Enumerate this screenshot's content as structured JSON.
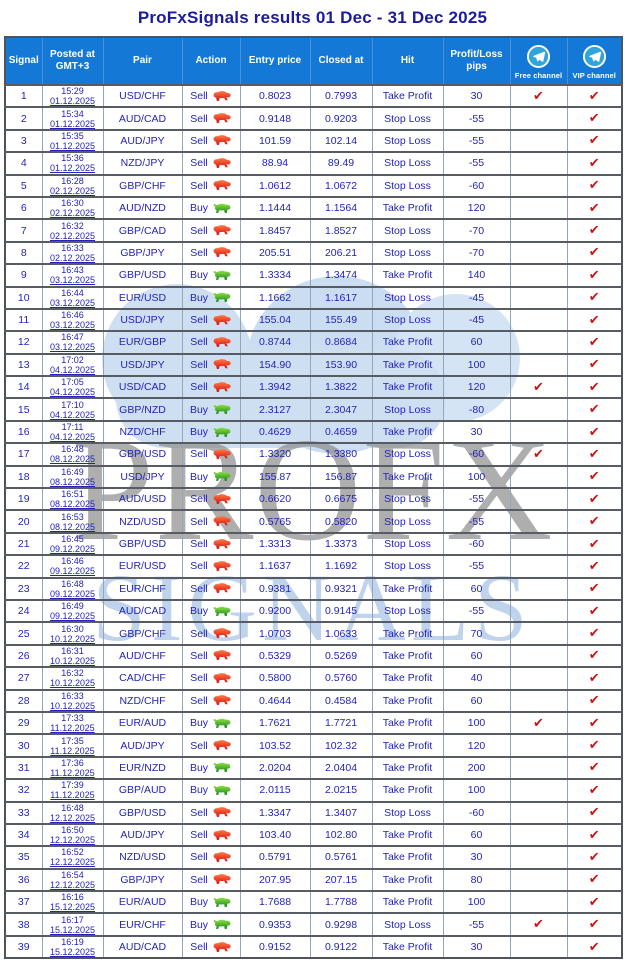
{
  "title": "ProFxSignals results 01 Dec - 31 Dec 2025",
  "colors": {
    "header_bg": "#1478d6",
    "title_text": "#1b1b9e",
    "cell_text": "#2323bb",
    "check_red": "#cc1414",
    "sell_bear_red": "#d90f0f",
    "buy_bull_green": "#1f9e1f",
    "telegram_blue": "#31a4de",
    "watermark_gray": "#8d8d8d",
    "watermark_light_blue": "#cbddf1"
  },
  "check_glyph": "✔",
  "watermark": {
    "line1": "PROFX",
    "line2": "SIGNALS"
  },
  "table": {
    "columns": [
      "Signal",
      "Posted at GMT+3",
      "Pair",
      "Action",
      "Entry price",
      "Closed at",
      "Hit",
      "Profit/Loss pips",
      "Free channel",
      "VIP channel"
    ]
  },
  "rows": [
    {
      "n": "1",
      "time": "15:29",
      "date": "01.12.2025",
      "pair": "USD/CHF",
      "act": "Sell",
      "entry": "0.8023",
      "closed": "0.7993",
      "hit": "Take Profit",
      "pips": "30",
      "free": true,
      "vip": true
    },
    {
      "n": "2",
      "time": "15:34",
      "date": "01.12.2025",
      "pair": "AUD/CAD",
      "act": "Sell",
      "entry": "0.9148",
      "closed": "0.9203",
      "hit": "Stop Loss",
      "pips": "-55",
      "free": false,
      "vip": true
    },
    {
      "n": "3",
      "time": "15:35",
      "date": "01.12.2025",
      "pair": "AUD/JPY",
      "act": "Sell",
      "entry": "101.59",
      "closed": "102.14",
      "hit": "Stop Loss",
      "pips": "-55",
      "free": false,
      "vip": true
    },
    {
      "n": "4",
      "time": "15:36",
      "date": "01.12.2025",
      "pair": "NZD/JPY",
      "act": "Sell",
      "entry": "88.94",
      "closed": "89.49",
      "hit": "Stop Loss",
      "pips": "-55",
      "free": false,
      "vip": true
    },
    {
      "n": "5",
      "time": "16:28",
      "date": "02.12.2025",
      "pair": "GBP/CHF",
      "act": "Sell",
      "entry": "1.0612",
      "closed": "1.0672",
      "hit": "Stop Loss",
      "pips": "-60",
      "free": false,
      "vip": true
    },
    {
      "n": "6",
      "time": "16:30",
      "date": "02.12.2025",
      "pair": "AUD/NZD",
      "act": "Buy",
      "entry": "1.1444",
      "closed": "1.1564",
      "hit": "Take Profit",
      "pips": "120",
      "free": false,
      "vip": true
    },
    {
      "n": "7",
      "time": "16:32",
      "date": "02.12.2025",
      "pair": "GBP/CAD",
      "act": "Sell",
      "entry": "1.8457",
      "closed": "1.8527",
      "hit": "Stop Loss",
      "pips": "-70",
      "free": false,
      "vip": true
    },
    {
      "n": "8",
      "time": "16:33",
      "date": "02.12.2025",
      "pair": "GBP/JPY",
      "act": "Sell",
      "entry": "205.51",
      "closed": "206.21",
      "hit": "Stop Loss",
      "pips": "-70",
      "free": false,
      "vip": true
    },
    {
      "n": "9",
      "time": "16:43",
      "date": "03.12.2025",
      "pair": "GBP/USD",
      "act": "Buy",
      "entry": "1.3334",
      "closed": "1.3474",
      "hit": "Take Profit",
      "pips": "140",
      "free": false,
      "vip": true
    },
    {
      "n": "10",
      "time": "16:44",
      "date": "03.12.2025",
      "pair": "EUR/USD",
      "act": "Buy",
      "entry": "1.1662",
      "closed": "1.1617",
      "hit": "Stop Loss",
      "pips": "-45",
      "free": false,
      "vip": true
    },
    {
      "n": "11",
      "time": "16:46",
      "date": "03.12.2025",
      "pair": "USD/JPY",
      "act": "Sell",
      "entry": "155.04",
      "closed": "155.49",
      "hit": "Stop Loss",
      "pips": "-45",
      "free": false,
      "vip": true
    },
    {
      "n": "12",
      "time": "16:47",
      "date": "03.12.2025",
      "pair": "EUR/GBP",
      "act": "Sell",
      "entry": "0.8744",
      "closed": "0.8684",
      "hit": "Take Profit",
      "pips": "60",
      "free": false,
      "vip": true
    },
    {
      "n": "13",
      "time": "17:02",
      "date": "04.12.2025",
      "pair": "USD/JPY",
      "act": "Sell",
      "entry": "154.90",
      "closed": "153.90",
      "hit": "Take Profit",
      "pips": "100",
      "free": false,
      "vip": true
    },
    {
      "n": "14",
      "time": "17:05",
      "date": "04.12.2025",
      "pair": "USD/CAD",
      "act": "Sell",
      "entry": "1.3942",
      "closed": "1.3822",
      "hit": "Take Profit",
      "pips": "120",
      "free": true,
      "vip": true
    },
    {
      "n": "15",
      "time": "17:10",
      "date": "04.12.2025",
      "pair": "GBP/NZD",
      "act": "Buy",
      "entry": "2.3127",
      "closed": "2.3047",
      "hit": "Stop Loss",
      "pips": "-80",
      "free": false,
      "vip": true
    },
    {
      "n": "16",
      "time": "17:11",
      "date": "04.12.2025",
      "pair": "NZD/CHF",
      "act": "Buy",
      "entry": "0.4629",
      "closed": "0.4659",
      "hit": "Take Profit",
      "pips": "30",
      "free": false,
      "vip": true
    },
    {
      "n": "17",
      "time": "16:48",
      "date": "08.12.2025",
      "pair": "GBP/USD",
      "act": "Sell",
      "entry": "1.3320",
      "closed": "1.3380",
      "hit": "Stop Loss",
      "pips": "-60",
      "free": true,
      "vip": true
    },
    {
      "n": "18",
      "time": "16:49",
      "date": "08.12.2025",
      "pair": "USD/JPY",
      "act": "Buy",
      "entry": "155.87",
      "closed": "156.87",
      "hit": "Take Profit",
      "pips": "100",
      "free": false,
      "vip": true
    },
    {
      "n": "19",
      "time": "16:51",
      "date": "08.12.2025",
      "pair": "AUD/USD",
      "act": "Sell",
      "entry": "0.6620",
      "closed": "0.6675",
      "hit": "Stop Loss",
      "pips": "-55",
      "free": false,
      "vip": true
    },
    {
      "n": "20",
      "time": "16:53",
      "date": "08.12.2025",
      "pair": "NZD/USD",
      "act": "Sell",
      "entry": "0.5765",
      "closed": "0.5820",
      "hit": "Stop Loss",
      "pips": "-55",
      "free": false,
      "vip": true
    },
    {
      "n": "21",
      "time": "16:45",
      "date": "09.12.2025",
      "pair": "GBP/USD",
      "act": "Sell",
      "entry": "1.3313",
      "closed": "1.3373",
      "hit": "Stop Loss",
      "pips": "-60",
      "free": false,
      "vip": true
    },
    {
      "n": "22",
      "time": "16:46",
      "date": "09.12.2025",
      "pair": "EUR/USD",
      "act": "Sell",
      "entry": "1.1637",
      "closed": "1.1692",
      "hit": "Stop Loss",
      "pips": "-55",
      "free": false,
      "vip": true
    },
    {
      "n": "23",
      "time": "16:48",
      "date": "09.12.2025",
      "pair": "EUR/CHF",
      "act": "Sell",
      "entry": "0.9381",
      "closed": "0.9321",
      "hit": "Take Profit",
      "pips": "60",
      "free": false,
      "vip": true
    },
    {
      "n": "24",
      "time": "16:49",
      "date": "09.12.2025",
      "pair": "AUD/CAD",
      "act": "Buy",
      "entry": "0.9200",
      "closed": "0.9145",
      "hit": "Stop Loss",
      "pips": "-55",
      "free": false,
      "vip": true
    },
    {
      "n": "25",
      "time": "16:30",
      "date": "10.12.2025",
      "pair": "GBP/CHF",
      "act": "Sell",
      "entry": "1.0703",
      "closed": "1.0633",
      "hit": "Take Profit",
      "pips": "70",
      "free": false,
      "vip": true
    },
    {
      "n": "26",
      "time": "16:31",
      "date": "10.12.2025",
      "pair": "AUD/CHF",
      "act": "Sell",
      "entry": "0.5329",
      "closed": "0.5269",
      "hit": "Take Profit",
      "pips": "60",
      "free": false,
      "vip": true
    },
    {
      "n": "27",
      "time": "16:32",
      "date": "10.12.2025",
      "pair": "CAD/CHF",
      "act": "Sell",
      "entry": "0.5800",
      "closed": "0.5760",
      "hit": "Take Profit",
      "pips": "40",
      "free": false,
      "vip": true
    },
    {
      "n": "28",
      "time": "16:33",
      "date": "10.12.2025",
      "pair": "NZD/CHF",
      "act": "Sell",
      "entry": "0.4644",
      "closed": "0.4584",
      "hit": "Take Profit",
      "pips": "60",
      "free": false,
      "vip": true
    },
    {
      "n": "29",
      "time": "17:33",
      "date": "11.12.2025",
      "pair": "EUR/AUD",
      "act": "Buy",
      "entry": "1.7621",
      "closed": "1.7721",
      "hit": "Take Profit",
      "pips": "100",
      "free": true,
      "vip": true
    },
    {
      "n": "30",
      "time": "17:35",
      "date": "11.12.2025",
      "pair": "AUD/JPY",
      "act": "Sell",
      "entry": "103.52",
      "closed": "102.32",
      "hit": "Take Profit",
      "pips": "120",
      "free": false,
      "vip": true
    },
    {
      "n": "31",
      "time": "17:36",
      "date": "11.12.2025",
      "pair": "EUR/NZD",
      "act": "Buy",
      "entry": "2.0204",
      "closed": "2.0404",
      "hit": "Take Profit",
      "pips": "200",
      "free": false,
      "vip": true
    },
    {
      "n": "32",
      "time": "17:39",
      "date": "11.12.2025",
      "pair": "GBP/AUD",
      "act": "Buy",
      "entry": "2.0115",
      "closed": "2.0215",
      "hit": "Take Profit",
      "pips": "100",
      "free": false,
      "vip": true
    },
    {
      "n": "33",
      "time": "16:48",
      "date": "12.12.2025",
      "pair": "GBP/USD",
      "act": "Sell",
      "entry": "1.3347",
      "closed": "1.3407",
      "hit": "Stop Loss",
      "pips": "-60",
      "free": false,
      "vip": true
    },
    {
      "n": "34",
      "time": "16:50",
      "date": "12.12.2025",
      "pair": "AUD/JPY",
      "act": "Sell",
      "entry": "103.40",
      "closed": "102.80",
      "hit": "Take Profit",
      "pips": "60",
      "free": false,
      "vip": true
    },
    {
      "n": "35",
      "time": "16:52",
      "date": "12.12.2025",
      "pair": "NZD/USD",
      "act": "Sell",
      "entry": "0.5791",
      "closed": "0.5761",
      "hit": "Take Profit",
      "pips": "30",
      "free": false,
      "vip": true
    },
    {
      "n": "36",
      "time": "16:54",
      "date": "12.12.2025",
      "pair": "GBP/JPY",
      "act": "Sell",
      "entry": "207.95",
      "closed": "207.15",
      "hit": "Take Profit",
      "pips": "80",
      "free": false,
      "vip": true
    },
    {
      "n": "37",
      "time": "16:16",
      "date": "15.12.2025",
      "pair": "EUR/AUD",
      "act": "Buy",
      "entry": "1.7688",
      "closed": "1.7788",
      "hit": "Take Profit",
      "pips": "100",
      "free": false,
      "vip": true
    },
    {
      "n": "38",
      "time": "16:17",
      "date": "15.12.2025",
      "pair": "EUR/CHF",
      "act": "Buy",
      "entry": "0.9353",
      "closed": "0.9298",
      "hit": "Stop Loss",
      "pips": "-55",
      "free": true,
      "vip": true
    },
    {
      "n": "39",
      "time": "16:19",
      "date": "15.12.2025",
      "pair": "AUD/CAD",
      "act": "Sell",
      "entry": "0.9152",
      "closed": "0.9122",
      "hit": "Take Profit",
      "pips": "30",
      "free": false,
      "vip": true
    }
  ]
}
